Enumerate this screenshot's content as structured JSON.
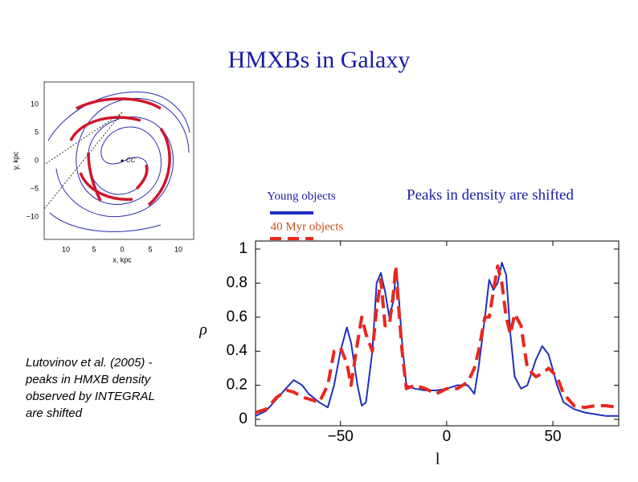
{
  "title": "HMXBs in Galaxy",
  "caption": "Peaks in density are shifted",
  "note": [
    "Lutovinov et al. (2005)  -",
    "peaks in HMXB density",
    "observed by INTEGRAL",
    "are shifted"
  ],
  "galaxy_map": {
    "y_label": "y, kpc",
    "x_label": "x, kpc",
    "center_label": "CC",
    "y_ticks": [
      "10",
      "5",
      "0",
      "−5",
      "−10"
    ],
    "x_ticks": [
      "10",
      "5",
      "0",
      "5",
      "10"
    ]
  },
  "chart_data": {
    "type": "line",
    "x_label": "l",
    "y_label": "ρ",
    "x": [
      -90,
      -85,
      -80,
      -75,
      -72,
      -68,
      -65,
      -60,
      -56,
      -53,
      -50,
      -47,
      -45,
      -42,
      -40,
      -38,
      -35,
      -33,
      -31,
      -29,
      -27,
      -25,
      -24,
      -23,
      -21,
      -19,
      -15,
      -10,
      -5,
      0,
      5,
      10,
      13,
      15,
      18,
      20,
      22,
      24,
      26,
      28,
      30,
      32,
      35,
      38,
      42,
      45,
      48,
      52,
      55,
      60,
      65,
      70,
      75,
      81
    ],
    "series": [
      {
        "name": "Young objects",
        "color": "#1f2fbf",
        "dash": false,
        "values": [
          0.02,
          0.05,
          0.12,
          0.19,
          0.23,
          0.2,
          0.15,
          0.1,
          0.07,
          0.2,
          0.4,
          0.54,
          0.45,
          0.2,
          0.08,
          0.1,
          0.4,
          0.8,
          0.86,
          0.75,
          0.6,
          0.7,
          0.85,
          0.8,
          0.45,
          0.2,
          0.18,
          0.17,
          0.17,
          0.18,
          0.2,
          0.2,
          0.15,
          0.3,
          0.6,
          0.82,
          0.76,
          0.8,
          0.92,
          0.85,
          0.5,
          0.25,
          0.18,
          0.2,
          0.35,
          0.43,
          0.38,
          0.2,
          0.1,
          0.06,
          0.04,
          0.03,
          0.02,
          0.02
        ]
      },
      {
        "name": "40 Myr objects",
        "color": "#e8281e",
        "dash": true,
        "values": [
          0.04,
          0.06,
          0.13,
          0.17,
          0.16,
          0.13,
          0.12,
          0.1,
          0.2,
          0.4,
          0.42,
          0.33,
          0.2,
          0.45,
          0.6,
          0.5,
          0.4,
          0.65,
          0.82,
          0.55,
          0.55,
          0.75,
          0.9,
          0.72,
          0.4,
          0.18,
          0.2,
          0.18,
          0.15,
          0.18,
          0.18,
          0.22,
          0.3,
          0.4,
          0.6,
          0.6,
          0.75,
          0.9,
          0.8,
          0.6,
          0.5,
          0.62,
          0.55,
          0.3,
          0.25,
          0.27,
          0.3,
          0.25,
          0.15,
          0.08,
          0.07,
          0.08,
          0.08,
          0.07
        ]
      }
    ],
    "xlim": [
      -90,
      81
    ],
    "ylim": [
      0,
      1
    ],
    "xticks": [
      {
        "value": -50,
        "label": "−50"
      },
      0,
      50
    ],
    "yticks": [
      0,
      0.2,
      0.4,
      0.6,
      0.8,
      1
    ]
  }
}
